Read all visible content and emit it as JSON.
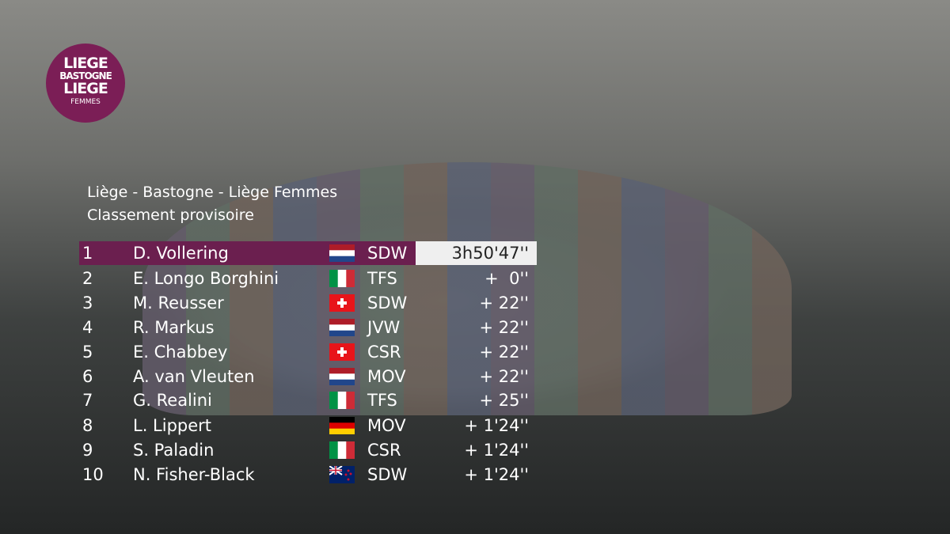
{
  "logo": {
    "line1": "LIEGE",
    "line2": "BASTOGNE",
    "line3": "LIEGE",
    "line4": "FEMMES"
  },
  "header": {
    "title": "Liège - Bastogne - Liège Femmes",
    "subtitle": "Classement provisoire"
  },
  "table": {
    "rows": [
      [
        "1",
        "D. Vollering",
        "SDW",
        "3h50'47''"
      ],
      [
        "2",
        "E. Longo Borghini",
        "TFS",
        "+  0''"
      ],
      [
        "3",
        "M. Reusser",
        "SDW",
        "+ 22''"
      ],
      [
        "4",
        "R. Markus",
        "JVW",
        "+ 22''"
      ],
      [
        "5",
        "E. Chabbey",
        "CSR",
        "+ 22''"
      ],
      [
        "6",
        "A. van Vleuten",
        "MOV",
        "+ 22''"
      ],
      [
        "7",
        "G. Realini",
        "TFS",
        "+ 25''"
      ],
      [
        "8",
        "L. Lippert",
        "MOV",
        "+ 1'24''"
      ],
      [
        "9",
        "S. Paladin",
        "CSR",
        "+ 1'24''"
      ],
      [
        "10",
        "N. Fisher-Black",
        "SDW",
        "+ 1'24''"
      ]
    ]
  }
}
